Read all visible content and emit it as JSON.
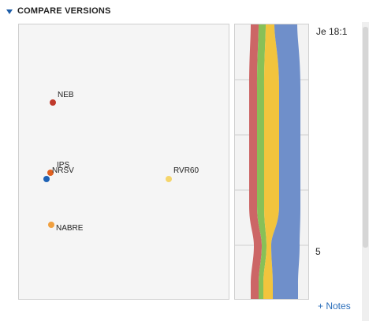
{
  "section": {
    "title": "COMPARE VERSIONS",
    "toggle_icon": "triangle-down-icon",
    "accent_color": "#1f5ea8"
  },
  "versions": [
    {
      "label": "NEB",
      "color": "#c0392b"
    },
    {
      "label": "IPS",
      "color": "#e06020"
    },
    {
      "label": "NRSV",
      "color": "#1f62b5"
    },
    {
      "label": "RVR60",
      "color": "#f5d56b"
    },
    {
      "label": "NABRE",
      "color": "#f0a040"
    }
  ],
  "flow": {
    "reference": "Je 18:1",
    "tick": "5",
    "band_colors": [
      "#cc6666",
      "#88c057",
      "#f2c43d",
      "#6f8fca"
    ]
  },
  "notes_link": "+ Notes"
}
